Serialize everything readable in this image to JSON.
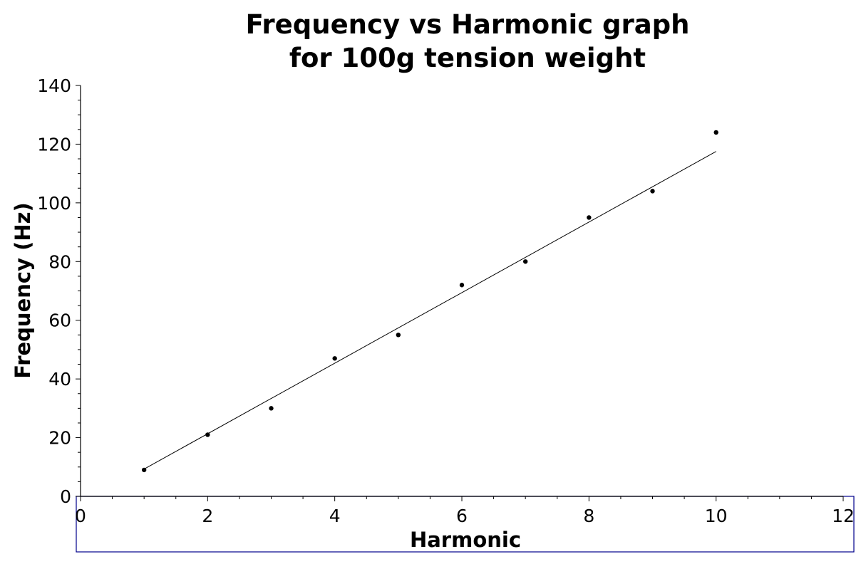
{
  "chart_data": {
    "type": "scatter",
    "title": [
      "Frequency vs Harmonic graph",
      "for 100g tension weight"
    ],
    "xlabel": "Harmonic",
    "ylabel": "Frequency (Hz)",
    "xlim": [
      0,
      12
    ],
    "ylim": [
      0,
      140
    ],
    "xticks": [
      0,
      2,
      4,
      6,
      8,
      10,
      12
    ],
    "yticks": [
      0,
      20,
      40,
      60,
      80,
      100,
      120,
      140
    ],
    "grid": false,
    "series": [
      {
        "x": [
          1,
          2,
          3,
          4,
          5,
          6,
          7,
          8,
          9,
          10
        ],
        "y": [
          9,
          21,
          30,
          47,
          55,
          72,
          80,
          95,
          104,
          124
        ]
      }
    ],
    "fit_line": {
      "x": [
        1,
        10
      ],
      "y": [
        9.3,
        117.5
      ]
    }
  }
}
